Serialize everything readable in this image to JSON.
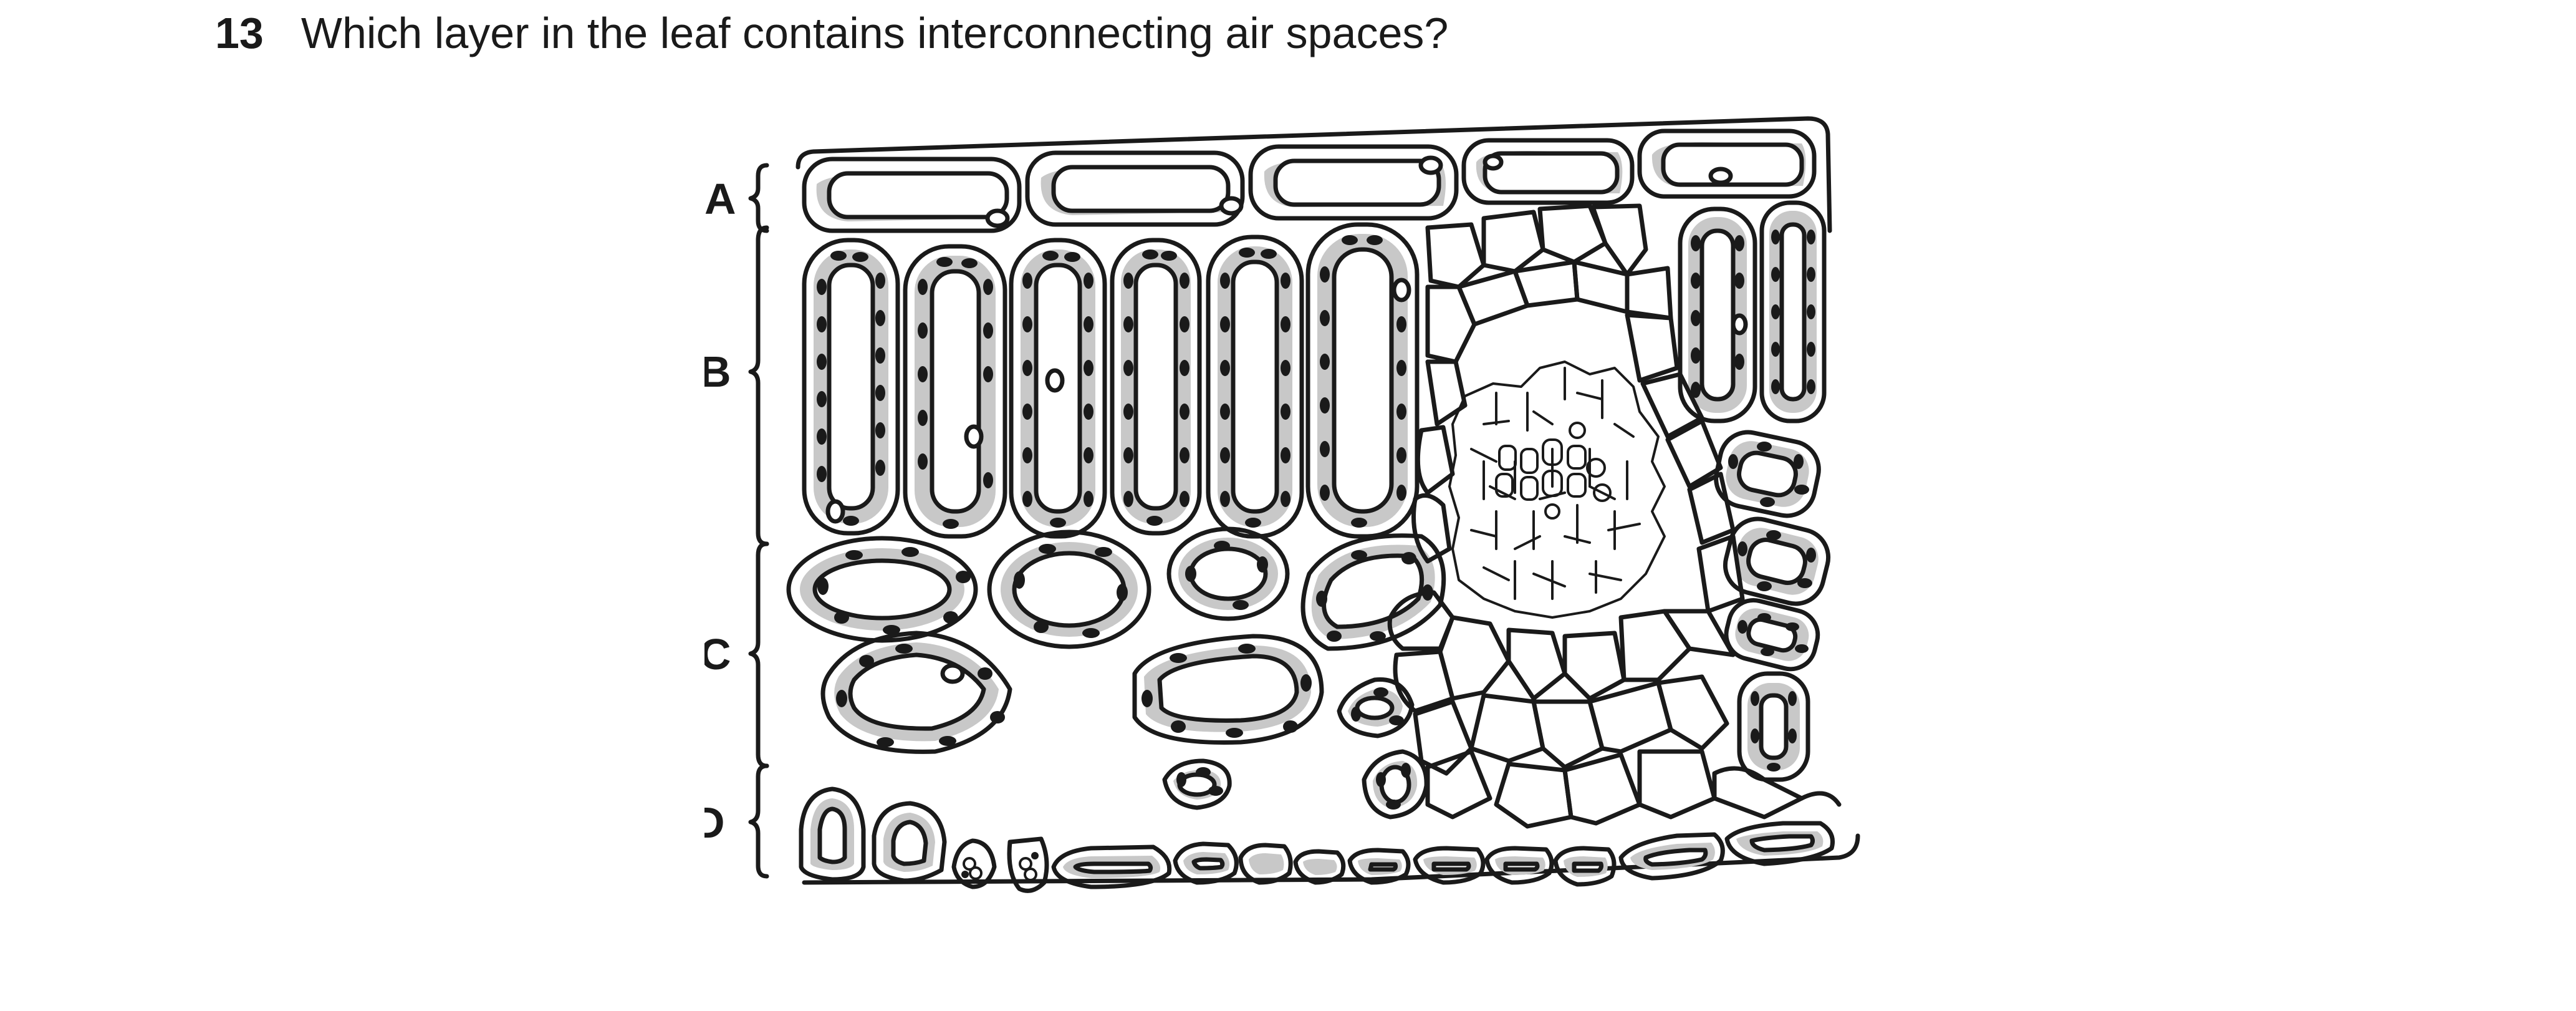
{
  "question": {
    "number": "13",
    "text": "Which layer in the leaf contains interconnecting air spaces?"
  },
  "diagram": {
    "layers": [
      {
        "label": "A"
      },
      {
        "label": "B"
      },
      {
        "label": "C"
      },
      {
        "label": "D"
      }
    ]
  },
  "colors": {
    "outline": "#1a1a1a",
    "cytoplasm": "#c8c8c8",
    "chloroplast": "#1a1a1a"
  }
}
